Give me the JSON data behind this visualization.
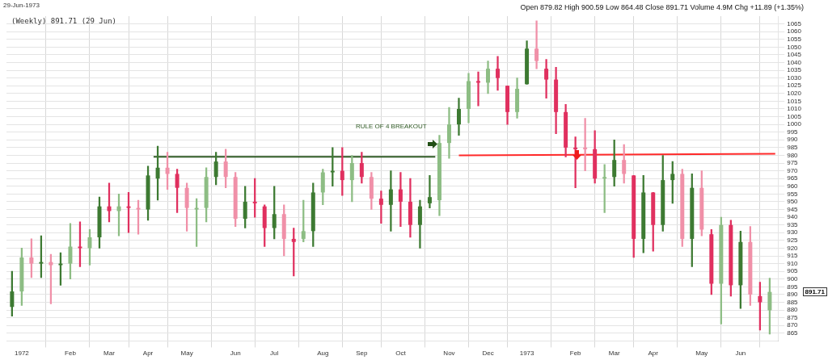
{
  "chart_data": {
    "type": "candlestick",
    "subtitle": "29-Jun-1973",
    "series": [
      {
        "type": "candlestick",
        "x": [
          "1971-12-27",
          "1972-01-03",
          "1972-01-10",
          "1972-01-17",
          "1972-01-24",
          "1972-01-31",
          "1972-02-07",
          "1972-02-14",
          "1972-02-21",
          "1972-02-28",
          "1972-03-06",
          "1972-03-13",
          "1972-03-20",
          "1972-03-27",
          "1972-04-03",
          "1972-04-10",
          "1972-04-17",
          "1972-04-24",
          "1972-05-01",
          "1972-05-08",
          "1972-05-15",
          "1972-05-22",
          "1972-05-29",
          "1972-06-05",
          "1972-06-12",
          "1972-06-19",
          "1972-06-26",
          "1972-07-03",
          "1972-07-10",
          "1972-07-17",
          "1972-07-24",
          "1972-07-31",
          "1972-08-07",
          "1972-08-14",
          "1972-08-21",
          "1972-08-28",
          "1972-09-04",
          "1972-09-11",
          "1972-09-18",
          "1972-09-25",
          "1972-10-02",
          "1972-10-09",
          "1972-10-16",
          "1972-10-23",
          "1972-10-30",
          "1972-11-06",
          "1972-11-13",
          "1972-11-20",
          "1972-11-27",
          "1972-12-04",
          "1972-12-11",
          "1972-12-18",
          "1972-12-25",
          "1973-01-01",
          "1973-01-08",
          "1973-01-15",
          "1973-01-22",
          "1973-01-29",
          "1973-02-05",
          "1973-02-12",
          "1973-02-19",
          "1973-02-26",
          "1973-03-05",
          "1973-03-12",
          "1973-03-19",
          "1973-03-26",
          "1973-04-02",
          "1973-04-09",
          "1973-04-16",
          "1973-04-23",
          "1973-04-30",
          "1973-05-07",
          "1973-05-14",
          "1973-05-21",
          "1973-05-28",
          "1973-06-04",
          "1973-06-11",
          "1973-06-18",
          "1973-06-25"
        ],
        "ohlc": [
          [
            882,
            905,
            876,
            892
          ],
          [
            892,
            920,
            883,
            914
          ],
          [
            914,
            926,
            901,
            910
          ],
          [
            910,
            928,
            901,
            911
          ],
          [
            911,
            916,
            884,
            909
          ],
          [
            909,
            917,
            896,
            910
          ],
          [
            910,
            936,
            900,
            921
          ],
          [
            921,
            937,
            908,
            920
          ],
          [
            920,
            932,
            909,
            927
          ],
          [
            927,
            953,
            920,
            947
          ],
          [
            947,
            962,
            937,
            944
          ],
          [
            944,
            955,
            928,
            947
          ],
          [
            947,
            956,
            930,
            946
          ],
          [
            946,
            951,
            929,
            945
          ],
          [
            945,
            973,
            938,
            967
          ],
          [
            965,
            986,
            951,
            972
          ],
          [
            972,
            982,
            958,
            968
          ],
          [
            968,
            971,
            943,
            959
          ],
          [
            959,
            962,
            931,
            946
          ],
          [
            945,
            952,
            921,
            946
          ],
          [
            946,
            972,
            937,
            966
          ],
          [
            966,
            982,
            961,
            976
          ],
          [
            976,
            984,
            959,
            966
          ],
          [
            966,
            969,
            934,
            939
          ],
          [
            939,
            960,
            933,
            950
          ],
          [
            950,
            965,
            940,
            949
          ],
          [
            947,
            948,
            921,
            933
          ],
          [
            933,
            960,
            926,
            942
          ],
          [
            942,
            948,
            915,
            926
          ],
          [
            926,
            933,
            902,
            924
          ],
          [
            926,
            951,
            924,
            931
          ],
          [
            931,
            962,
            921,
            956
          ],
          [
            956,
            971,
            948,
            969
          ],
          [
            969,
            985,
            960,
            970
          ],
          [
            970,
            985,
            954,
            964
          ],
          [
            964,
            980,
            950,
            975
          ],
          [
            975,
            982,
            962,
            966
          ],
          [
            966,
            969,
            945,
            952
          ],
          [
            952,
            957,
            936,
            948
          ],
          [
            948,
            970,
            931,
            958
          ],
          [
            958,
            969,
            934,
            950
          ],
          [
            950,
            965,
            927,
            935
          ],
          [
            935,
            951,
            920,
            947
          ],
          [
            949,
            967,
            946,
            953
          ],
          [
            951,
            993,
            941,
            988
          ],
          [
            988,
            1011,
            978,
            1000
          ],
          [
            1000,
            1017,
            993,
            1010
          ],
          [
            1010,
            1033,
            1001,
            1028
          ],
          [
            1028,
            1034,
            1012,
            1027
          ],
          [
            1027,
            1041,
            1020,
            1036
          ],
          [
            1036,
            1044,
            1022,
            1030
          ],
          [
            1025,
            1025,
            1000,
            1008
          ],
          [
            1008,
            1030,
            1004,
            1023
          ],
          [
            1026,
            1054,
            1026,
            1049
          ],
          [
            1049,
            1067,
            1036,
            1041
          ],
          [
            1036,
            1042,
            1017,
            1029
          ],
          [
            1029,
            1037,
            994,
            1008
          ],
          [
            1008,
            1013,
            979,
            985
          ],
          [
            985,
            992,
            959,
            984
          ],
          [
            985,
            1004,
            970,
            984
          ],
          [
            984,
            996,
            962,
            965
          ],
          [
            965,
            974,
            943,
            966
          ],
          [
            966,
            990,
            960,
            977
          ],
          [
            977,
            987,
            962,
            968
          ],
          [
            967,
            967,
            914,
            926
          ],
          [
            926,
            967,
            917,
            956
          ],
          [
            956,
            956,
            918,
            935
          ],
          [
            935,
            980,
            931,
            964
          ],
          [
            964,
            976,
            949,
            968
          ],
          [
            968,
            971,
            921,
            926
          ],
          [
            926,
            968,
            908,
            959
          ],
          [
            959,
            970,
            928,
            932
          ],
          [
            929,
            932,
            890,
            897
          ],
          [
            897,
            940,
            871,
            935
          ],
          [
            935,
            938,
            889,
            896
          ],
          [
            896,
            931,
            881,
            924
          ],
          [
            924,
            934,
            883,
            890
          ],
          [
            889,
            898,
            867,
            885
          ],
          [
            879.82,
            900.59,
            864.48,
            891.71
          ]
        ],
        "colors": [
          "#3d7a32",
          "#8dbd84",
          "#f090a8",
          "#3d7a32",
          "#f090a8",
          "#3d7a32",
          "#8dbd84",
          "#e0305f",
          "#8dbd84",
          "#3d7a32",
          "#e0305f",
          "#8dbd84",
          "#e0305f",
          "#f090a8",
          "#3d7a32",
          "#3d7a32",
          "#f090a8",
          "#e0305f",
          "#f090a8",
          "#8dbd84",
          "#8dbd84",
          "#3d7a32",
          "#f090a8",
          "#f090a8",
          "#3d7a32",
          "#e0305f",
          "#e0305f",
          "#3d7a32",
          "#f090a8",
          "#e0305f",
          "#8dbd84",
          "#3d7a32",
          "#8dbd84",
          "#3d7a32",
          "#e0305f",
          "#8dbd84",
          "#e0305f",
          "#f090a8",
          "#e0305f",
          "#3d7a32",
          "#e0305f",
          "#e0305f",
          "#3d7a32",
          "#3d7a32",
          "#8dbd84",
          "#8dbd84",
          "#3d7a32",
          "#8dbd84",
          "#e0305f",
          "#8dbd84",
          "#e0305f",
          "#e0305f",
          "#8dbd84",
          "#3d7a32",
          "#f090a8",
          "#e0305f",
          "#e0305f",
          "#e0305f",
          "#e0305f",
          "#f090a8",
          "#e0305f",
          "#8dbd84",
          "#3d7a32",
          "#f090a8",
          "#e0305f",
          "#3d7a32",
          "#e0305f",
          "#3d7a32",
          "#3d7a32",
          "#f090a8",
          "#3d7a32",
          "#f090a8",
          "#e0305f",
          "#8dbd84",
          "#e0305f",
          "#3d7a32",
          "#f090a8",
          "#e0305f",
          "#8dbd84"
        ]
      },
      {
        "type": "line",
        "x": [
          "1972-04-07",
          "1972-10-27"
        ],
        "values": [
          979,
          979
        ],
        "color": "#2f5a24"
      },
      {
        "type": "line",
        "x": [
          "1972-11-13",
          "1973-06-29"
        ],
        "values": [
          980,
          981
        ],
        "color": "#ff2a2a"
      }
    ],
    "xlim": [
      "1971-12-23",
      "1973-07-01"
    ],
    "xticks": [
      {
        "value": "1972-01-03",
        "label": "1972"
      },
      {
        "value": "1972-02-07",
        "label": "Feb"
      },
      {
        "value": "1972-03-06",
        "label": "Mar"
      },
      {
        "value": "1972-04-03",
        "label": "Apr"
      },
      {
        "value": "1972-05-01",
        "label": "May"
      },
      {
        "value": "1972-06-05",
        "label": "Jun"
      },
      {
        "value": "1972-07-03",
        "label": "Jul"
      },
      {
        "value": "1972-08-07",
        "label": "Aug"
      },
      {
        "value": "1972-09-04",
        "label": "Sep"
      },
      {
        "value": "1972-10-02",
        "label": "Oct"
      },
      {
        "value": "1972-11-06",
        "label": "Nov"
      },
      {
        "value": "1972-12-04",
        "label": "Dec"
      },
      {
        "value": "1973-01-01",
        "label": "1973"
      },
      {
        "value": "1973-02-05",
        "label": "Feb"
      },
      {
        "value": "1973-03-05",
        "label": "Mar"
      },
      {
        "value": "1973-04-02",
        "label": "Apr"
      },
      {
        "value": "1973-05-07",
        "label": "May"
      },
      {
        "value": "1973-06-04",
        "label": "Jun"
      }
    ],
    "ylim": [
      860,
      1070
    ],
    "yticks": [
      865,
      870,
      875,
      880,
      885,
      890,
      895,
      900,
      905,
      910,
      915,
      920,
      925,
      930,
      935,
      940,
      945,
      950,
      955,
      960,
      965,
      970,
      975,
      980,
      985,
      990,
      995,
      1000,
      1005,
      1010,
      1015,
      1020,
      1025,
      1030,
      1035,
      1040,
      1045,
      1050,
      1055,
      1060,
      1065
    ],
    "grid": true,
    "annotations": [
      "(Weekly) 891.71 (29 Jun)",
      "Open 879.82  High 900.59  Low 864.48  Close 891.71  Volume 4.9M  Chg +11.89 (+1.35%)",
      "RULE OF 4 BREAKOUT",
      "891.71"
    ]
  }
}
